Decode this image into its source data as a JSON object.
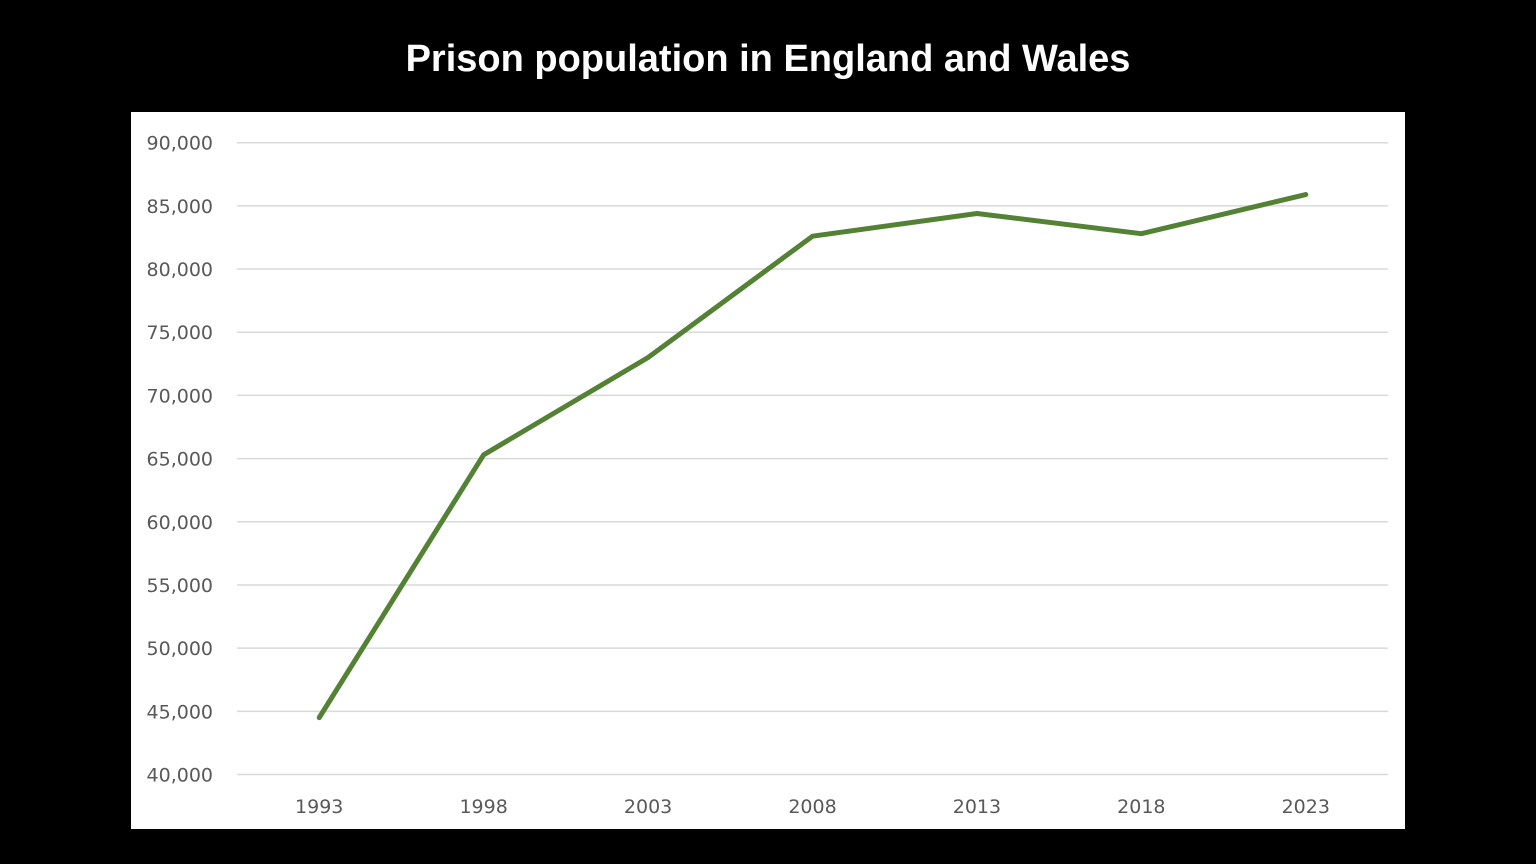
{
  "chart_data": {
    "type": "line",
    "title": "Prison population in England and Wales",
    "xlabel": "",
    "ylabel": "",
    "categories": [
      "1993",
      "1998",
      "2003",
      "2008",
      "2013",
      "2018",
      "2023"
    ],
    "series": [
      {
        "values": [
          44500,
          65300,
          73000,
          82600,
          84400,
          82800,
          85900
        ],
        "color": "#548235"
      }
    ],
    "ylim": [
      40000,
      90000
    ],
    "yticks": [
      40000,
      45000,
      50000,
      55000,
      60000,
      65000,
      70000,
      75000,
      80000,
      85000,
      90000
    ],
    "ytick_labels": [
      "40,000",
      "45,000",
      "50,000",
      "55,000",
      "60,000",
      "65,000",
      "70,000",
      "75,000",
      "80,000",
      "85,000",
      "90,000"
    ],
    "grid": "horizontal",
    "legend": "none",
    "background": "#000000",
    "plot_background": "#ffffff",
    "grid_color": "#d9d9d9"
  }
}
